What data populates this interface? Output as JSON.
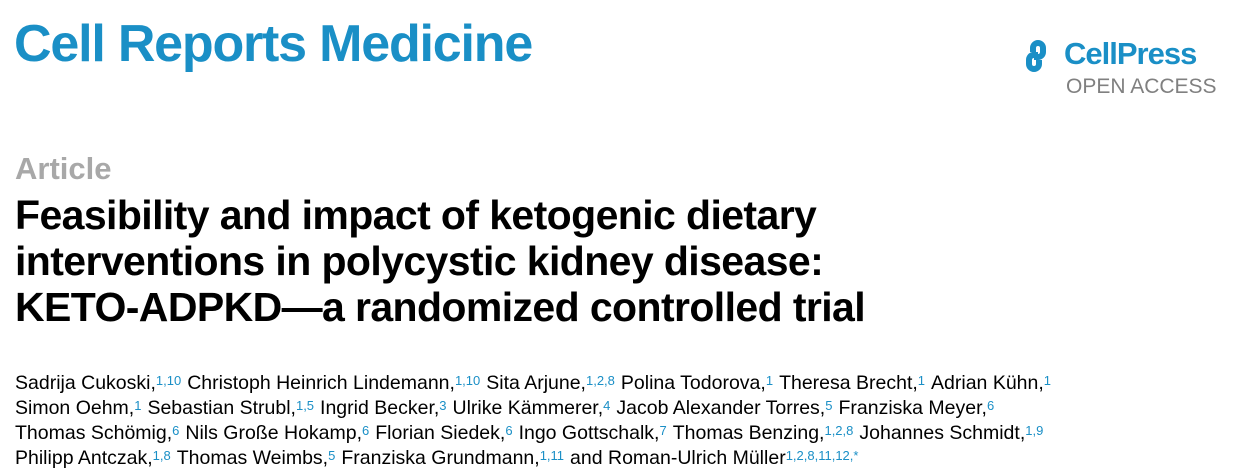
{
  "header": {
    "journal": "Cell Reports Medicine",
    "publisher": "CellPress",
    "access": "OPEN ACCESS"
  },
  "article": {
    "type": "Article",
    "title_lines": [
      "Feasibility and impact of ketogenic dietary",
      "interventions in polycystic kidney disease:",
      "KETO-ADPKD—a randomized controlled trial"
    ],
    "author_lines": [
      [
        {
          "name": "Sadrija Cukoski,",
          "aff": "1,10"
        },
        {
          "name": "Christoph Heinrich Lindemann,",
          "aff": "1,10"
        },
        {
          "name": "Sita Arjune,",
          "aff": "1,2,8"
        },
        {
          "name": "Polina Todorova,",
          "aff": "1"
        },
        {
          "name": "Theresa Brecht,",
          "aff": "1"
        },
        {
          "name": "Adrian Kühn,",
          "aff": "1"
        }
      ],
      [
        {
          "name": "Simon Oehm,",
          "aff": "1"
        },
        {
          "name": "Sebastian Strubl,",
          "aff": "1,5"
        },
        {
          "name": "Ingrid Becker,",
          "aff": "3"
        },
        {
          "name": "Ulrike Kämmerer,",
          "aff": "4"
        },
        {
          "name": "Jacob Alexander Torres,",
          "aff": "5"
        },
        {
          "name": "Franziska Meyer,",
          "aff": "6"
        }
      ],
      [
        {
          "name": "Thomas Schömig,",
          "aff": "6"
        },
        {
          "name": "Nils Große Hokamp,",
          "aff": "6"
        },
        {
          "name": "Florian Siedek,",
          "aff": "6"
        },
        {
          "name": "Ingo Gottschalk,",
          "aff": "7"
        },
        {
          "name": "Thomas Benzing,",
          "aff": "1,2,8"
        },
        {
          "name": "Johannes Schmidt,",
          "aff": "1,9"
        }
      ],
      [
        {
          "name": "Philipp Antczak,",
          "aff": "1,8"
        },
        {
          "name": "Thomas Weimbs,",
          "aff": "5"
        },
        {
          "name": "Franziska Grundmann,",
          "aff": "1,11"
        },
        {
          "name": "and Roman-Ulrich Müller",
          "aff": "1,2,8,11,12,*"
        }
      ]
    ]
  }
}
